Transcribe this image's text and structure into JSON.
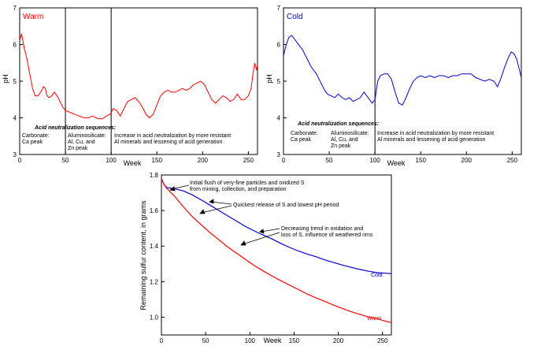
{
  "chart_data": [
    {
      "type": "line",
      "panel_title": "Warm",
      "title_color": "#ff0000",
      "line_color": "#ff0000",
      "xlabel": "Week",
      "ylabel": "pH",
      "xlim": [
        0,
        260
      ],
      "ylim": [
        3,
        7
      ],
      "x_ticks": [
        "0",
        "50",
        "100",
        "150",
        "200",
        "250"
      ],
      "y_ticks": [
        "3",
        "4",
        "5",
        "6",
        "7"
      ],
      "dividers": [
        50,
        100
      ],
      "annotation_title": "Acid neutralization sequences:",
      "annotations": [
        [
          "Carbonate:",
          "Ca peak"
        ],
        [
          "Aluminosilicate:",
          "Al, Cu, and",
          "Zn peak"
        ],
        [
          "Increase in acid neutralization by more resistant",
          "Al minerals and lessening of acid generation"
        ]
      ],
      "series": [
        {
          "name": "Warm",
          "points": [
            [
              0,
              6.1
            ],
            [
              2,
              6.3
            ],
            [
              5,
              5.9
            ],
            [
              8,
              5.6
            ],
            [
              11,
              5.2
            ],
            [
              14,
              4.8
            ],
            [
              17,
              4.6
            ],
            [
              20,
              4.6
            ],
            [
              23,
              4.7
            ],
            [
              26,
              4.85
            ],
            [
              28,
              4.8
            ],
            [
              30,
              4.6
            ],
            [
              32,
              4.55
            ],
            [
              35,
              4.6
            ],
            [
              38,
              4.7
            ],
            [
              41,
              4.6
            ],
            [
              44,
              4.45
            ],
            [
              47,
              4.3
            ],
            [
              50,
              4.2
            ],
            [
              55,
              4.15
            ],
            [
              60,
              4.1
            ],
            [
              65,
              4.05
            ],
            [
              70,
              4.0
            ],
            [
              75,
              4.0
            ],
            [
              80,
              4.05
            ],
            [
              85,
              3.98
            ],
            [
              90,
              3.97
            ],
            [
              95,
              4.05
            ],
            [
              99,
              4.1
            ],
            [
              102,
              4.25
            ],
            [
              106,
              4.2
            ],
            [
              110,
              4.05
            ],
            [
              114,
              4.25
            ],
            [
              118,
              4.45
            ],
            [
              122,
              4.5
            ],
            [
              126,
              4.55
            ],
            [
              130,
              4.45
            ],
            [
              134,
              4.3
            ],
            [
              138,
              4.1
            ],
            [
              142,
              4.0
            ],
            [
              146,
              4.1
            ],
            [
              150,
              4.35
            ],
            [
              154,
              4.6
            ],
            [
              158,
              4.7
            ],
            [
              162,
              4.75
            ],
            [
              166,
              4.7
            ],
            [
              170,
              4.7
            ],
            [
              174,
              4.75
            ],
            [
              178,
              4.8
            ],
            [
              182,
              4.75
            ],
            [
              186,
              4.8
            ],
            [
              190,
              4.9
            ],
            [
              194,
              4.95
            ],
            [
              198,
              5.0
            ],
            [
              202,
              4.9
            ],
            [
              206,
              4.7
            ],
            [
              210,
              4.5
            ],
            [
              214,
              4.4
            ],
            [
              218,
              4.5
            ],
            [
              222,
              4.6
            ],
            [
              226,
              4.55
            ],
            [
              230,
              4.45
            ],
            [
              234,
              4.5
            ],
            [
              238,
              4.65
            ],
            [
              242,
              4.5
            ],
            [
              246,
              4.5
            ],
            [
              250,
              4.6
            ],
            [
              253,
              4.8
            ],
            [
              255,
              5.2
            ],
            [
              257,
              5.5
            ],
            [
              259,
              5.3
            ],
            [
              260,
              5.45
            ]
          ]
        }
      ]
    },
    {
      "type": "line",
      "panel_title": "Cold",
      "title_color": "#0000cc",
      "line_color": "#0000cc",
      "xlabel": "Week",
      "ylabel": "pH",
      "xlim": [
        0,
        260
      ],
      "ylim": [
        3,
        7
      ],
      "x_ticks": [
        "0",
        "50",
        "100",
        "150",
        "200",
        "250"
      ],
      "y_ticks": [
        "3",
        "4",
        "5",
        "6",
        "7"
      ],
      "dividers": [
        100
      ],
      "annotation_title": "Acid neutralization sequences:",
      "annotations": [
        [
          "Carbonate:",
          "Ca peak"
        ],
        [
          "Aluminosilicate:",
          "Al, Cu, and",
          "Zn peak"
        ],
        [
          "Increase in acid neutralization by more resistant",
          "Al minerals and lessening of acid generation"
        ]
      ],
      "series": [
        {
          "name": "Cold",
          "points": [
            [
              0,
              5.7
            ],
            [
              3,
              6.0
            ],
            [
              6,
              6.2
            ],
            [
              9,
              6.25
            ],
            [
              12,
              6.15
            ],
            [
              15,
              6.05
            ],
            [
              18,
              5.95
            ],
            [
              21,
              5.85
            ],
            [
              24,
              5.7
            ],
            [
              27,
              5.55
            ],
            [
              30,
              5.4
            ],
            [
              33,
              5.3
            ],
            [
              36,
              5.2
            ],
            [
              39,
              5.05
            ],
            [
              42,
              4.9
            ],
            [
              45,
              4.75
            ],
            [
              48,
              4.65
            ],
            [
              52,
              4.6
            ],
            [
              56,
              4.55
            ],
            [
              60,
              4.65
            ],
            [
              64,
              4.55
            ],
            [
              68,
              4.5
            ],
            [
              72,
              4.55
            ],
            [
              76,
              4.45
            ],
            [
              80,
              4.5
            ],
            [
              84,
              4.55
            ],
            [
              88,
              4.7
            ],
            [
              91,
              4.6
            ],
            [
              94,
              4.5
            ],
            [
              97,
              4.4
            ],
            [
              100,
              4.5
            ],
            [
              103,
              5.0
            ],
            [
              106,
              5.15
            ],
            [
              110,
              5.2
            ],
            [
              114,
              5.2
            ],
            [
              118,
              5.05
            ],
            [
              122,
              4.7
            ],
            [
              126,
              4.4
            ],
            [
              130,
              4.35
            ],
            [
              134,
              4.55
            ],
            [
              138,
              4.8
            ],
            [
              142,
              5.0
            ],
            [
              146,
              5.1
            ],
            [
              150,
              5.15
            ],
            [
              155,
              5.1
            ],
            [
              160,
              5.15
            ],
            [
              165,
              5.1
            ],
            [
              170,
              5.15
            ],
            [
              175,
              5.15
            ],
            [
              180,
              5.1
            ],
            [
              185,
              5.15
            ],
            [
              190,
              5.15
            ],
            [
              195,
              5.2
            ],
            [
              200,
              5.2
            ],
            [
              205,
              5.2
            ],
            [
              210,
              5.1
            ],
            [
              215,
              5.05
            ],
            [
              220,
              5.0
            ],
            [
              225,
              5.05
            ],
            [
              230,
              5.0
            ],
            [
              234,
              4.85
            ],
            [
              238,
              5.1
            ],
            [
              242,
              5.4
            ],
            [
              246,
              5.65
            ],
            [
              249,
              5.8
            ],
            [
              252,
              5.75
            ],
            [
              255,
              5.6
            ],
            [
              258,
              5.3
            ],
            [
              260,
              5.1
            ]
          ]
        }
      ]
    },
    {
      "type": "line",
      "title": "",
      "xlabel": "Week",
      "ylabel": "Remaining sulfur content, in grams",
      "xlim": [
        0,
        260
      ],
      "ylim": [
        0.9,
        1.8
      ],
      "x_ticks": [
        "0",
        "50",
        "100",
        "150",
        "200",
        "250"
      ],
      "y_ticks": [
        "1.0",
        "1.2",
        "1.4",
        "1.6",
        "1.8"
      ],
      "series": [
        {
          "name": "Cold",
          "color": "#0000cc",
          "points": [
            [
              0,
              1.78
            ],
            [
              3,
              1.745
            ],
            [
              6,
              1.73
            ],
            [
              15,
              1.722
            ],
            [
              25,
              1.71
            ],
            [
              35,
              1.688
            ],
            [
              45,
              1.66
            ],
            [
              55,
              1.63
            ],
            [
              65,
              1.6
            ],
            [
              75,
              1.57
            ],
            [
              85,
              1.54
            ],
            [
              95,
              1.51
            ],
            [
              105,
              1.485
            ],
            [
              115,
              1.462
            ],
            [
              125,
              1.44
            ],
            [
              135,
              1.415
            ],
            [
              145,
              1.392
            ],
            [
              155,
              1.372
            ],
            [
              165,
              1.355
            ],
            [
              175,
              1.34
            ],
            [
              185,
              1.322
            ],
            [
              195,
              1.307
            ],
            [
              205,
              1.293
            ],
            [
              215,
              1.28
            ],
            [
              225,
              1.268
            ],
            [
              235,
              1.258
            ],
            [
              245,
              1.25
            ],
            [
              255,
              1.247
            ],
            [
              260,
              1.245
            ]
          ]
        },
        {
          "name": "Warm",
          "color": "#ff0000",
          "points": [
            [
              0,
              1.78
            ],
            [
              3,
              1.745
            ],
            [
              6,
              1.725
            ],
            [
              15,
              1.68
            ],
            [
              25,
              1.62
            ],
            [
              35,
              1.565
            ],
            [
              45,
              1.52
            ],
            [
              55,
              1.475
            ],
            [
              65,
              1.435
            ],
            [
              75,
              1.395
            ],
            [
              85,
              1.36
            ],
            [
              95,
              1.325
            ],
            [
              105,
              1.29
            ],
            [
              115,
              1.26
            ],
            [
              125,
              1.232
            ],
            [
              135,
              1.205
            ],
            [
              145,
              1.18
            ],
            [
              155,
              1.155
            ],
            [
              165,
              1.13
            ],
            [
              175,
              1.108
            ],
            [
              185,
              1.088
            ],
            [
              195,
              1.067
            ],
            [
              205,
              1.048
            ],
            [
              215,
              1.03
            ],
            [
              225,
              1.015
            ],
            [
              235,
              1.0
            ],
            [
              245,
              0.99
            ],
            [
              255,
              0.975
            ],
            [
              260,
              0.97
            ]
          ]
        }
      ],
      "series_labels": {
        "cold": "Cold",
        "warm": "Warm"
      },
      "annotations": [
        [
          "Initial flush of very-fine particles and oxidized S",
          "from mining, collection, and preparation"
        ],
        [
          "Quickest release of S and lowest pH period"
        ],
        [
          "Decreasing trend in oxidation and",
          "loss of S, influence of weathered rims"
        ]
      ]
    }
  ]
}
